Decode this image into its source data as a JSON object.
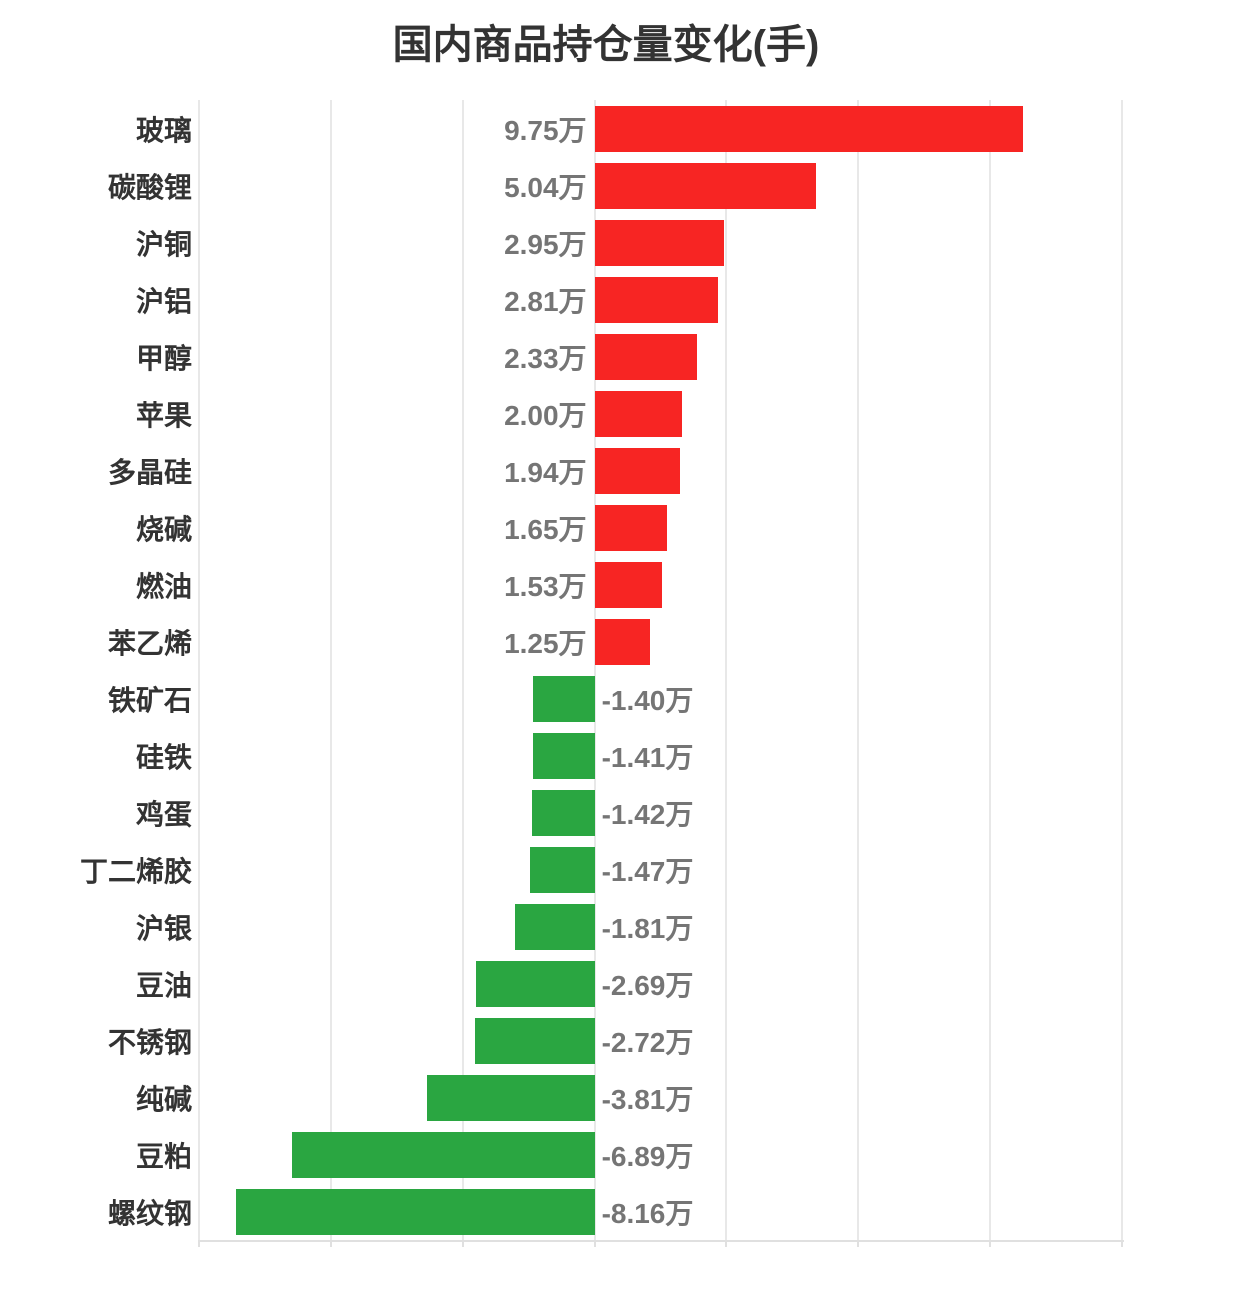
{
  "colors": {
    "positive_bar": "#f72523",
    "negative_bar": "#2aa641",
    "title_text": "#333333",
    "category_label": "#333333",
    "value_label": "#757575",
    "gridline": "#e8e8e8",
    "axis_line": "#e0e0e0"
  },
  "chart_data": {
    "type": "bar",
    "orientation": "horizontal",
    "title": "国内商品持仓量变化(手)",
    "xlabel": "",
    "ylabel": "",
    "legend_position": "none",
    "grid": true,
    "grid_interval": 3,
    "xlim": [
      -9,
      12
    ],
    "value_unit": "万",
    "categories": [
      "玻璃",
      "碳酸锂",
      "沪铜",
      "沪铝",
      "甲醇",
      "苹果",
      "多晶硅",
      "烧碱",
      "燃油",
      "苯乙烯",
      "铁矿石",
      "硅铁",
      "鸡蛋",
      "丁二烯胶",
      "沪银",
      "豆油",
      "不锈钢",
      "纯碱",
      "豆粕",
      "螺纹钢"
    ],
    "values": [
      9.75,
      5.04,
      2.95,
      2.81,
      2.33,
      2.0,
      1.94,
      1.65,
      1.53,
      1.25,
      -1.4,
      -1.41,
      -1.42,
      -1.47,
      -1.81,
      -2.69,
      -2.72,
      -3.81,
      -6.89,
      -8.16
    ],
    "value_labels": [
      "9.75万",
      "5.04万",
      "2.95万",
      "2.81万",
      "2.33万",
      "2.00万",
      "1.94万",
      "1.65万",
      "1.53万",
      "1.25万",
      "-1.40万",
      "-1.41万",
      "-1.42万",
      "-1.47万",
      "-1.81万",
      "-2.69万",
      "-2.72万",
      "-3.81万",
      "-6.89万",
      "-8.16万"
    ]
  }
}
